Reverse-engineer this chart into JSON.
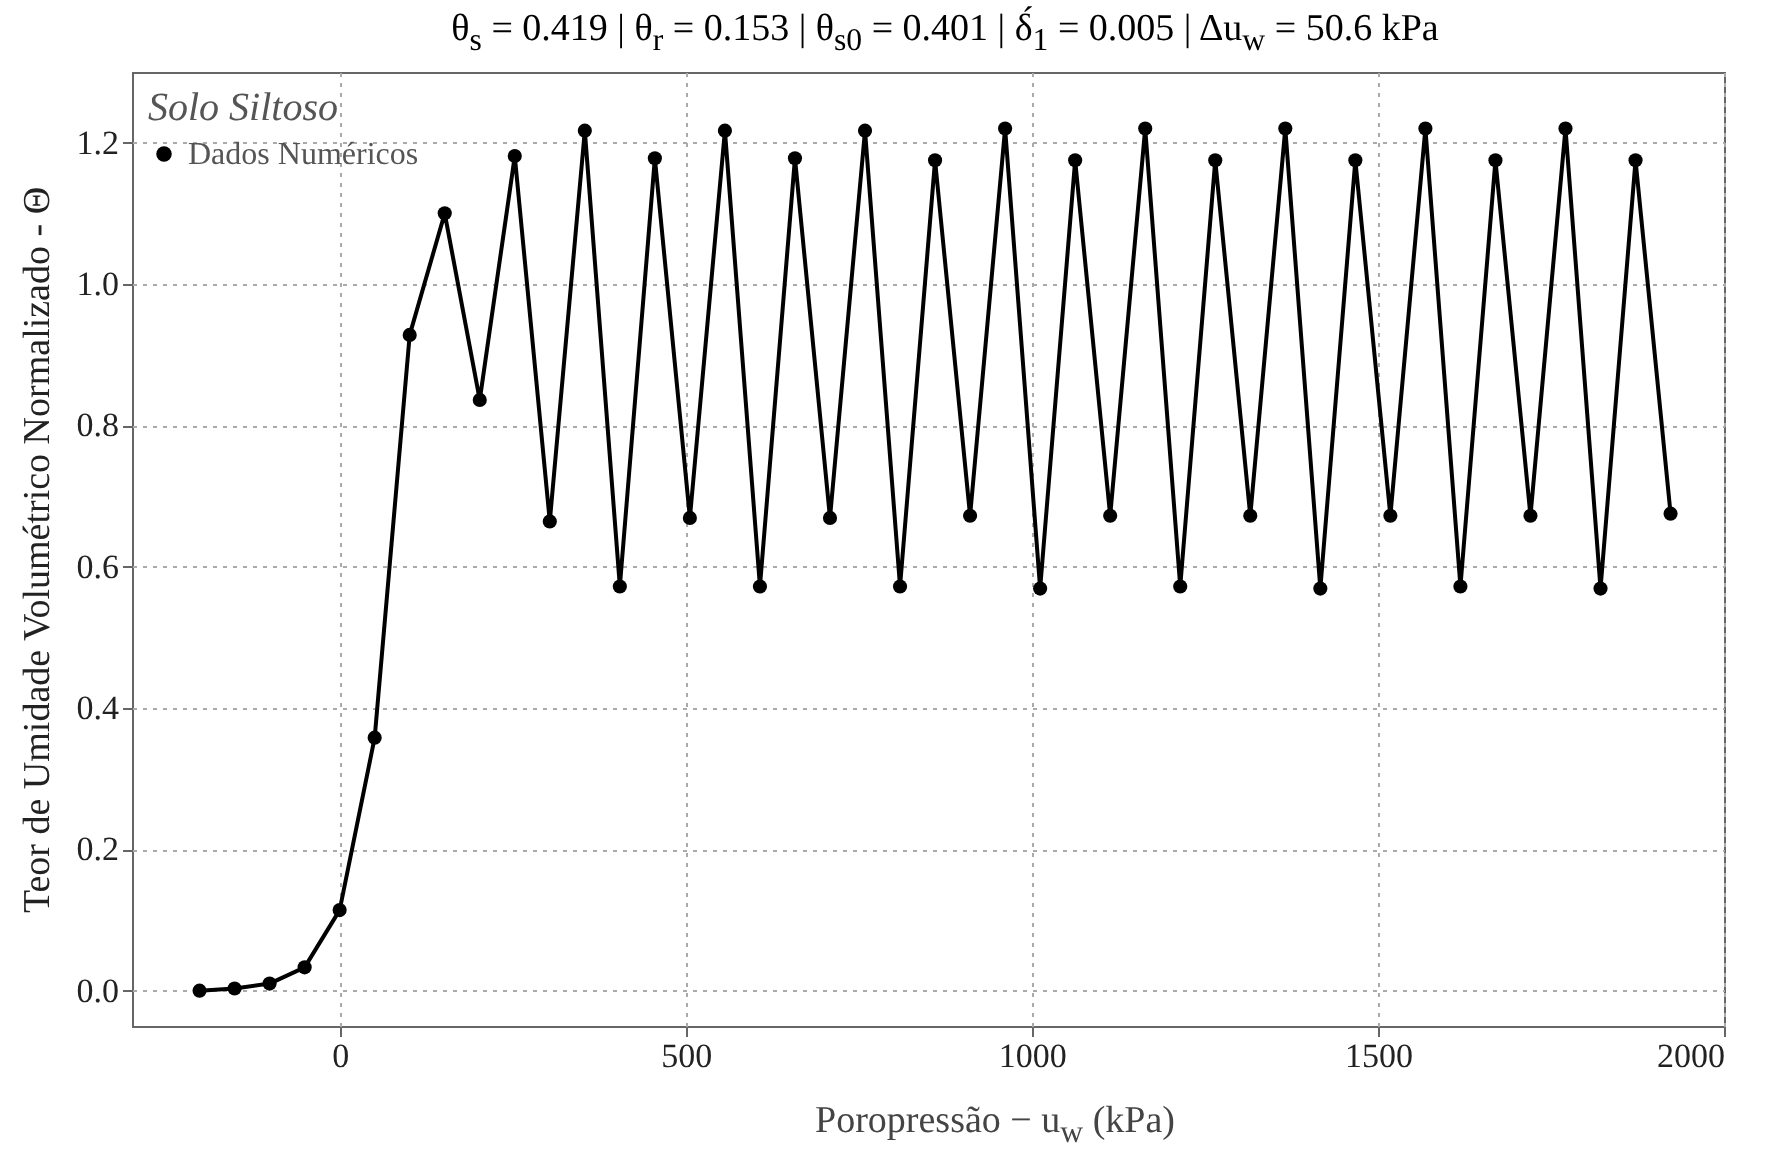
{
  "chart_data": {
    "type": "line",
    "title": "θ$_{s}$ = 0.419  |  θ$_{r}$ = 0.153  |  θ$_{s0}$ = 0.401  |  δ́$_{1}$ = 0.005  | Δu$_{w}$ = 50.6 kPa",
    "xlabel": "Poropressão  − u$_{w}$ (kPa)",
    "ylabel": "Teor de Umidade Volumétrico Normalizado - Θ",
    "legend_title": "Solo Siltoso",
    "legend": "top left",
    "grid": true,
    "marker": "circle",
    "line_style": "solid",
    "xlim": [
      -300,
      2000
    ],
    "xticks": [
      0,
      500,
      1000,
      1500,
      2000
    ],
    "ylim": [
      -0.05,
      1.3
    ],
    "yticks": [
      {
        "value": 0,
        "label": "0.0"
      },
      {
        "value": 0.2,
        "label": "0.2"
      },
      {
        "value": 0.4,
        "label": "0.4"
      },
      {
        "value": 0.6,
        "label": "0.6"
      },
      {
        "value": 0.8,
        "label": "0.8"
      },
      {
        "value": 1,
        "label": "1.0"
      },
      {
        "value": 1.2,
        "label": "1.2"
      }
    ],
    "x": [
      -202.4,
      -151.8,
      -101.2,
      -50.6,
      0,
      50.6,
      101.2,
      151.8,
      202.4,
      253,
      303.6,
      354.2,
      404.8,
      455.4,
      506,
      556.6,
      607.2,
      657.8,
      708.4,
      759,
      809.6,
      860.2,
      910.8,
      961.4,
      1012,
      1062.6,
      1113.2,
      1163.8,
      1214.4,
      1265,
      1315.6,
      1366.2,
      1416.8,
      1467.4,
      1518,
      1568.6,
      1619.2,
      1669.8,
      1720.4,
      1771,
      1821.6,
      1872.2,
      1922.8
    ],
    "series": [
      {
        "name": "Dados Numéricos",
        "color": "#000000",
        "values": [
          0,
          0.003,
          0.01,
          0.033,
          0.114,
          0.358,
          0.928,
          1.1,
          0.836,
          1.181,
          0.664,
          1.217,
          0.572,
          1.178,
          0.669,
          1.217,
          0.572,
          1.178,
          0.669,
          1.217,
          0.572,
          1.175,
          0.672,
          1.22,
          0.569,
          1.175,
          0.672,
          1.22,
          0.572,
          1.175,
          0.672,
          1.22,
          0.569,
          1.175,
          0.672,
          1.22,
          0.572,
          1.175,
          0.672,
          1.22,
          0.569,
          1.175,
          0.675
        ]
      }
    ]
  }
}
